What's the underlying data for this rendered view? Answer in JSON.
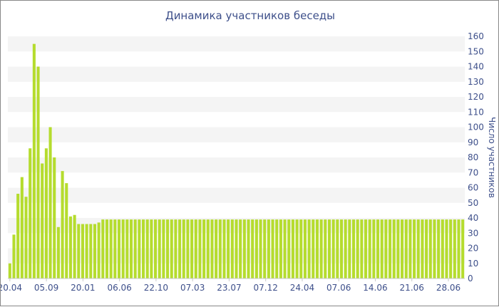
{
  "chart_data": {
    "type": "bar",
    "title": "Динамика участников беседы",
    "xlabel": "",
    "ylabel": "Число участников",
    "ylim": [
      0,
      160
    ],
    "y_ticks": [
      0,
      10,
      20,
      30,
      40,
      50,
      60,
      70,
      80,
      90,
      100,
      110,
      120,
      130,
      140,
      150,
      160
    ],
    "y_axis_side": "right",
    "grid": "horizontal alternating bands",
    "colors": {
      "bar": "#b5dc2e",
      "band": "#f4f4f4",
      "text": "#3d4f8a"
    },
    "x_tick_labels": [
      "20.04",
      "05.09",
      "20.01",
      "06.06",
      "22.10",
      "07.03",
      "23.07",
      "07.12",
      "24.04",
      "07.06",
      "14.06",
      "21.06",
      "28.06"
    ],
    "values": [
      10,
      29,
      56,
      67,
      54,
      86,
      155,
      140,
      76,
      86,
      100,
      80,
      34,
      71,
      63,
      41,
      42,
      36,
      36,
      36,
      36,
      36,
      37,
      39,
      39,
      39,
      39,
      39,
      39,
      39,
      39,
      39,
      39,
      39,
      39,
      39,
      39,
      39,
      39,
      39,
      39,
      39,
      39,
      39,
      39,
      39,
      39,
      39,
      39,
      39,
      39,
      39,
      39,
      39,
      39,
      39,
      39,
      39,
      39,
      39,
      39,
      39,
      39,
      39,
      39,
      39,
      39,
      39,
      39,
      39,
      39,
      39,
      39,
      39,
      39,
      39,
      39,
      39,
      39,
      39,
      39,
      39,
      39,
      39,
      39,
      39,
      39,
      39,
      39,
      39,
      39,
      39,
      39,
      39,
      39,
      39,
      39,
      39,
      39,
      39,
      39,
      39,
      39,
      39,
      39,
      39,
      39,
      39,
      39,
      39,
      39,
      39,
      39
    ]
  }
}
